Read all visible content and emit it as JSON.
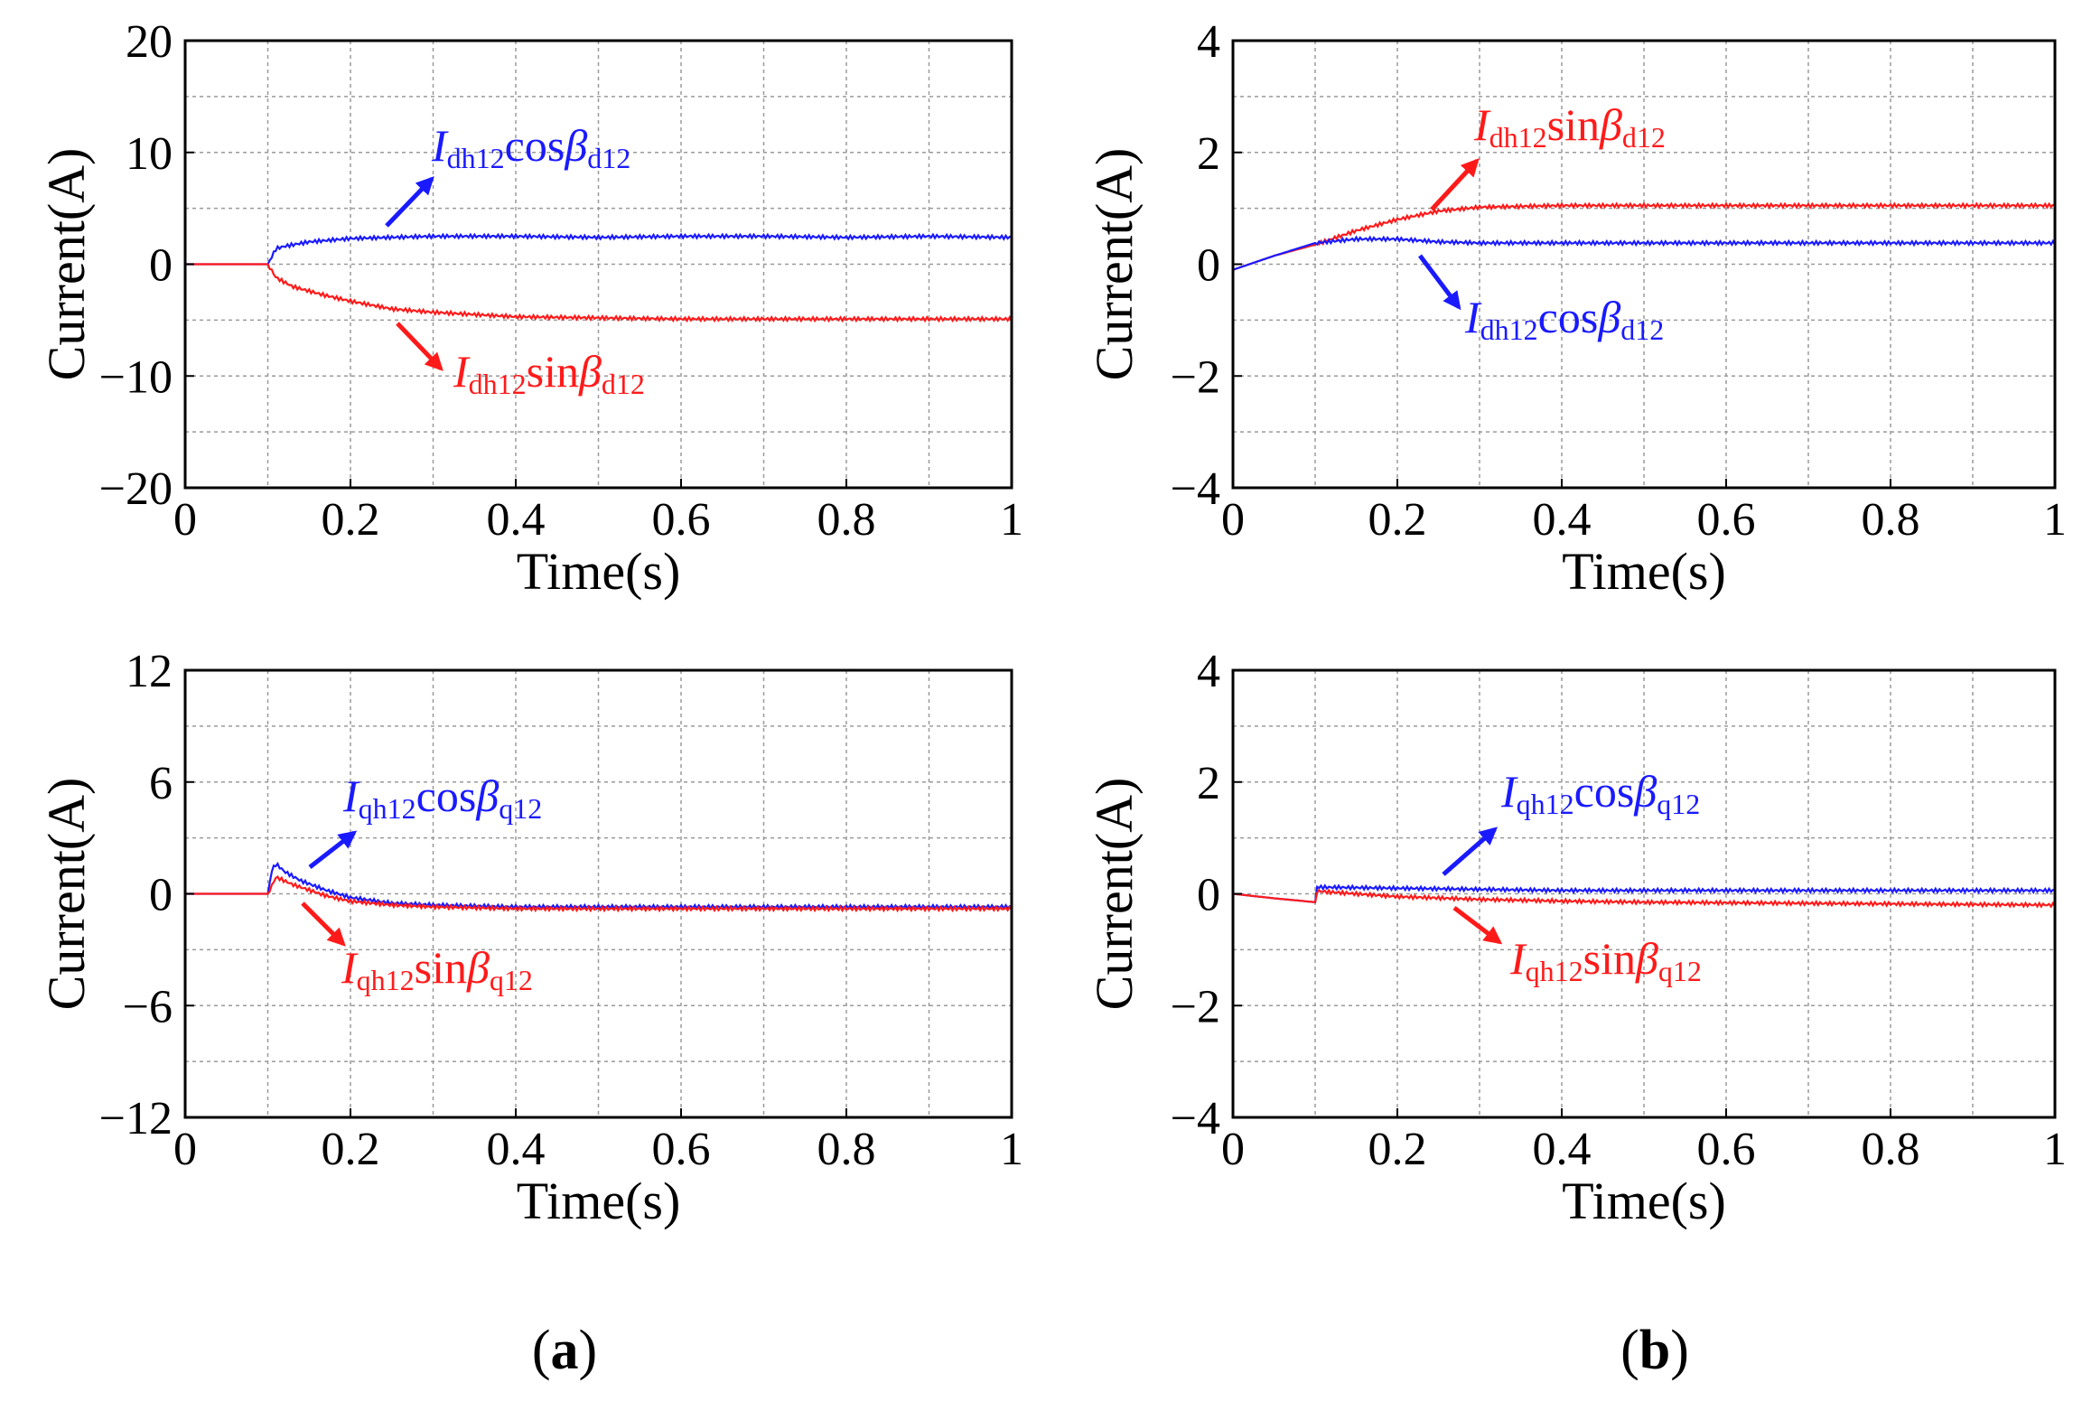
{
  "figure": {
    "captions": {
      "a": {
        "open": "(",
        "letter": "a",
        "close": ")"
      },
      "b": {
        "open": "(",
        "letter": "b",
        "close": ")"
      }
    },
    "colors": {
      "blue": "#1a1aff",
      "red": "#ff1a1a",
      "axis": "#000000",
      "grid": "#9a9a9a"
    }
  },
  "chart_data": [
    {
      "id": "a-top",
      "type": "line",
      "xlabel": "Time(s)",
      "ylabel": "Current(A)",
      "xlim": [
        0,
        1
      ],
      "ylim": [
        -20,
        20
      ],
      "xticks": [
        0,
        0.2,
        0.4,
        0.6,
        0.8,
        1
      ],
      "xtick_labels": [
        "0",
        "0.2",
        "0.4",
        "0.6",
        "0.8",
        "1"
      ],
      "yticks": [
        -20,
        -10,
        0,
        10,
        20
      ],
      "ytick_labels": [
        "−20",
        "−10",
        "0",
        "10",
        "20"
      ],
      "series": [
        {
          "name": "Idh12cosβd12",
          "color": "#1a1aff",
          "x": [
            0,
            0.1,
            0.11,
            0.12,
            0.15,
            0.2,
            0.3,
            0.4,
            0.5,
            0.6,
            0.7,
            0.8,
            0.9,
            1.0
          ],
          "y": [
            0,
            0,
            1.4,
            1.6,
            2.0,
            2.3,
            2.5,
            2.5,
            2.4,
            2.5,
            2.5,
            2.4,
            2.5,
            2.4
          ]
        },
        {
          "name": "Idh12sinβd12",
          "color": "#ff1a1a",
          "x": [
            0,
            0.1,
            0.11,
            0.13,
            0.17,
            0.2,
            0.25,
            0.3,
            0.4,
            0.5,
            0.6,
            0.7,
            0.8,
            0.9,
            1.0
          ],
          "y": [
            0,
            0,
            -1.2,
            -2.0,
            -2.8,
            -3.3,
            -4.0,
            -4.3,
            -4.7,
            -4.8,
            -4.9,
            -4.9,
            -4.9,
            -4.9,
            -4.9
          ]
        }
      ],
      "annotations": [
        {
          "series": 0,
          "main": "I",
          "sub1": "dh12",
          "mid": "cos",
          "beta": "β",
          "sub2": "d12",
          "color": "#1a1aff"
        },
        {
          "series": 1,
          "main": "I",
          "sub1": "dh12",
          "mid": "sin",
          "beta": "β",
          "sub2": "d12",
          "color": "#ff1a1a"
        }
      ]
    },
    {
      "id": "b-top",
      "type": "line",
      "xlabel": "Time(s)",
      "ylabel": "Current(A)",
      "xlim": [
        0,
        1
      ],
      "ylim": [
        -4,
        4
      ],
      "xticks": [
        0,
        0.2,
        0.4,
        0.6,
        0.8,
        1
      ],
      "xtick_labels": [
        "0",
        "0.2",
        "0.4",
        "0.6",
        "0.8",
        "1"
      ],
      "yticks": [
        -4,
        -2,
        0,
        2,
        4
      ],
      "ytick_labels": [
        "−4",
        "−2",
        "0",
        "2",
        "4"
      ],
      "series": [
        {
          "name": "Idh12sinβd12",
          "color": "#ff1a1a",
          "x": [
            0,
            0.05,
            0.1,
            0.15,
            0.2,
            0.25,
            0.3,
            0.4,
            0.5,
            0.6,
            0.7,
            0.8,
            0.9,
            1.0
          ],
          "y": [
            -0.1,
            0.15,
            0.35,
            0.6,
            0.8,
            0.95,
            1.02,
            1.05,
            1.05,
            1.05,
            1.05,
            1.05,
            1.05,
            1.05
          ]
        },
        {
          "name": "Idh12cosβd12",
          "color": "#1a1aff",
          "x": [
            0,
            0.05,
            0.1,
            0.15,
            0.2,
            0.25,
            0.3,
            0.4,
            0.5,
            0.6,
            0.7,
            0.8,
            0.9,
            1.0
          ],
          "y": [
            -0.1,
            0.15,
            0.38,
            0.45,
            0.45,
            0.4,
            0.38,
            0.38,
            0.38,
            0.38,
            0.38,
            0.38,
            0.38,
            0.38
          ]
        }
      ],
      "annotations": [
        {
          "series": 0,
          "main": "I",
          "sub1": "dh12",
          "mid": "sin",
          "beta": "β",
          "sub2": "d12",
          "color": "#ff1a1a"
        },
        {
          "series": 1,
          "main": "I",
          "sub1": "dh12",
          "mid": "cos",
          "beta": "β",
          "sub2": "d12",
          "color": "#1a1aff"
        }
      ]
    },
    {
      "id": "a-bottom",
      "type": "line",
      "xlabel": "Time(s)",
      "ylabel": "Current(A)",
      "xlim": [
        0,
        1
      ],
      "ylim": [
        -12,
        12
      ],
      "xticks": [
        0,
        0.2,
        0.4,
        0.6,
        0.8,
        1
      ],
      "xtick_labels": [
        "0",
        "0.2",
        "0.4",
        "0.6",
        "0.8",
        "1"
      ],
      "yticks": [
        -12,
        -6,
        0,
        6,
        12
      ],
      "ytick_labels": [
        "−12",
        "−6",
        "0",
        "6",
        "12"
      ],
      "series": [
        {
          "name": "Iqh12cosβq12",
          "color": "#1a1aff",
          "x": [
            0,
            0.1,
            0.105,
            0.11,
            0.12,
            0.14,
            0.17,
            0.2,
            0.25,
            0.3,
            0.4,
            0.5,
            0.6,
            0.7,
            0.8,
            0.9,
            1.0
          ],
          "y": [
            0,
            0,
            1.3,
            1.6,
            1.2,
            0.7,
            0.2,
            -0.2,
            -0.5,
            -0.6,
            -0.7,
            -0.7,
            -0.7,
            -0.7,
            -0.7,
            -0.7,
            -0.7
          ]
        },
        {
          "name": "Iqh12sinβq12",
          "color": "#ff1a1a",
          "x": [
            0,
            0.1,
            0.11,
            0.13,
            0.17,
            0.2,
            0.25,
            0.3,
            0.4,
            0.5,
            0.6,
            0.7,
            0.8,
            0.9,
            1.0
          ],
          "y": [
            0,
            0,
            0.9,
            0.5,
            -0.1,
            -0.4,
            -0.6,
            -0.7,
            -0.8,
            -0.8,
            -0.8,
            -0.8,
            -0.8,
            -0.8,
            -0.8
          ]
        }
      ],
      "annotations": [
        {
          "series": 0,
          "main": "I",
          "sub1": "qh12",
          "mid": "cos",
          "beta": "β",
          "sub2": "q12",
          "color": "#1a1aff"
        },
        {
          "series": 1,
          "main": "I",
          "sub1": "qh12",
          "mid": "sin",
          "beta": "β",
          "sub2": "q12",
          "color": "#ff1a1a"
        }
      ]
    },
    {
      "id": "b-bottom",
      "type": "line",
      "xlabel": "Time(s)",
      "ylabel": "Current(A)",
      "xlim": [
        0,
        1
      ],
      "ylim": [
        -4,
        4
      ],
      "xticks": [
        0,
        0.2,
        0.4,
        0.6,
        0.8,
        1
      ],
      "xtick_labels": [
        "0",
        "0.2",
        "0.4",
        "0.6",
        "0.8",
        "1"
      ],
      "yticks": [
        -4,
        -2,
        0,
        2,
        4
      ],
      "ytick_labels": [
        "−4",
        "−2",
        "0",
        "2",
        "4"
      ],
      "series": [
        {
          "name": "Iqh12cosβq12",
          "color": "#1a1aff",
          "x": [
            0,
            0.05,
            0.1,
            0.1,
            0.2,
            0.3,
            0.4,
            0.5,
            0.6,
            0.7,
            0.8,
            0.9,
            1.0
          ],
          "y": [
            0,
            -0.08,
            -0.15,
            0.12,
            0.1,
            0.08,
            0.06,
            0.06,
            0.06,
            0.06,
            0.06,
            0.06,
            0.06
          ]
        },
        {
          "name": "Iqh12sinβq12",
          "color": "#ff1a1a",
          "x": [
            0,
            0.05,
            0.1,
            0.1,
            0.2,
            0.3,
            0.4,
            0.5,
            0.6,
            0.7,
            0.8,
            0.9,
            1.0
          ],
          "y": [
            0,
            -0.08,
            -0.15,
            0.05,
            -0.05,
            -0.1,
            -0.13,
            -0.15,
            -0.16,
            -0.17,
            -0.18,
            -0.19,
            -0.2
          ]
        }
      ],
      "annotations": [
        {
          "series": 0,
          "main": "I",
          "sub1": "qh12",
          "mid": "cos",
          "beta": "β",
          "sub2": "q12",
          "color": "#1a1aff"
        },
        {
          "series": 1,
          "main": "I",
          "sub1": "qh12",
          "mid": "sin",
          "beta": "β",
          "sub2": "q12",
          "color": "#ff1a1a"
        }
      ]
    }
  ]
}
